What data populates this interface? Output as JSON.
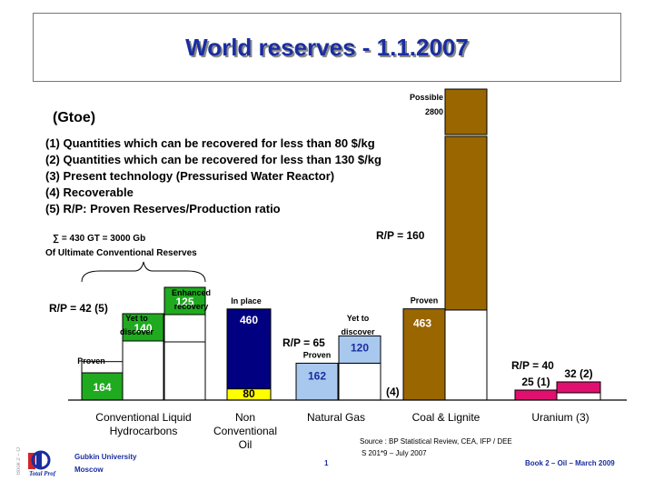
{
  "title": "World reserves - 1.1.2007",
  "unit": "(Gtoe)",
  "notes": [
    "(1) Quantities which can be recovered for less than 80 $/kg",
    "(2) Quantities which can be recovered for less than 130 $/kg",
    "(3) Present technology (Pressurised Water Reactor)",
    "(4) Recoverable",
    "(5) R/P: Proven Reserves/Production ratio"
  ],
  "brace_label_1": "∑ = 430 GT = 3000 Gb",
  "brace_label_2": "Of Ultimate Conventional Reserves",
  "chart_data": {
    "type": "bar",
    "categories": [
      "Conventional Liquid Hydrocarbons",
      "Non Conventional Oil",
      "Natural Gas",
      "Coal & Lignite",
      "Uranium (3)"
    ],
    "category_labels": [
      [
        "Conventional Liquid",
        "Hydrocarbons"
      ],
      [
        "Non",
        "Conventional",
        "Oil"
      ],
      [
        "Natural Gas"
      ],
      [
        "Coal & Lignite"
      ],
      [
        "Uranium (3)"
      ]
    ],
    "bars": [
      {
        "group": "Conventional Liquid Hydrocarbons",
        "label": "Proven",
        "value": 164,
        "value_text": "164",
        "color": "#1faa1f"
      },
      {
        "group": "Conventional Liquid Hydrocarbons",
        "label": "Yet to discover",
        "value": 140,
        "value_text": "140",
        "color": "#1faa1f"
      },
      {
        "group": "Conventional Liquid Hydrocarbons",
        "label": "Enhanced recovery",
        "value": 125,
        "value_text": "125",
        "color": "#1faa1f"
      },
      {
        "group": "Non Conventional Oil",
        "label": "In place",
        "segments": [
          {
            "value": 80,
            "value_text": "80",
            "color": "#ffff00"
          },
          {
            "value": 460,
            "value_text": "460",
            "color": "#000080"
          }
        ]
      },
      {
        "group": "Natural Gas",
        "label": "Proven",
        "value": 162,
        "value_text": "162",
        "color": "#a8c8ee"
      },
      {
        "group": "Natural Gas",
        "label": "Yet to discover",
        "value": 120,
        "value_text": "120",
        "color": "#a8c8ee"
      },
      {
        "group": "Coal & Lignite",
        "label": "Proven",
        "value": 463,
        "value_text": "463",
        "color": "#996600"
      },
      {
        "group": "Coal & Lignite",
        "label": "Possible",
        "value": 2800,
        "value_text": "2800",
        "color": "#996600"
      },
      {
        "group": "Uranium (3)",
        "label": "",
        "value": 25,
        "value_text": "25 (1)",
        "color": "#e0106e"
      },
      {
        "group": "Uranium (3)",
        "label": "",
        "value": 32,
        "value_text": "32 (2)",
        "color": "#e0106e"
      }
    ],
    "annotations": [
      "R/P = 42 (5)",
      "R/P = 65",
      "R/P = 160",
      "R/P = 40",
      "(4)"
    ]
  },
  "footer": {
    "source": "Source : BP Statistical Review, CEA, IFP / DEE",
    "source_sub": "S 201*9 – July 2007",
    "org_line1": "Gubkin University",
    "org_line2": "Moscow",
    "page": "1",
    "book": "Book 2 – Oil – March 2009"
  }
}
